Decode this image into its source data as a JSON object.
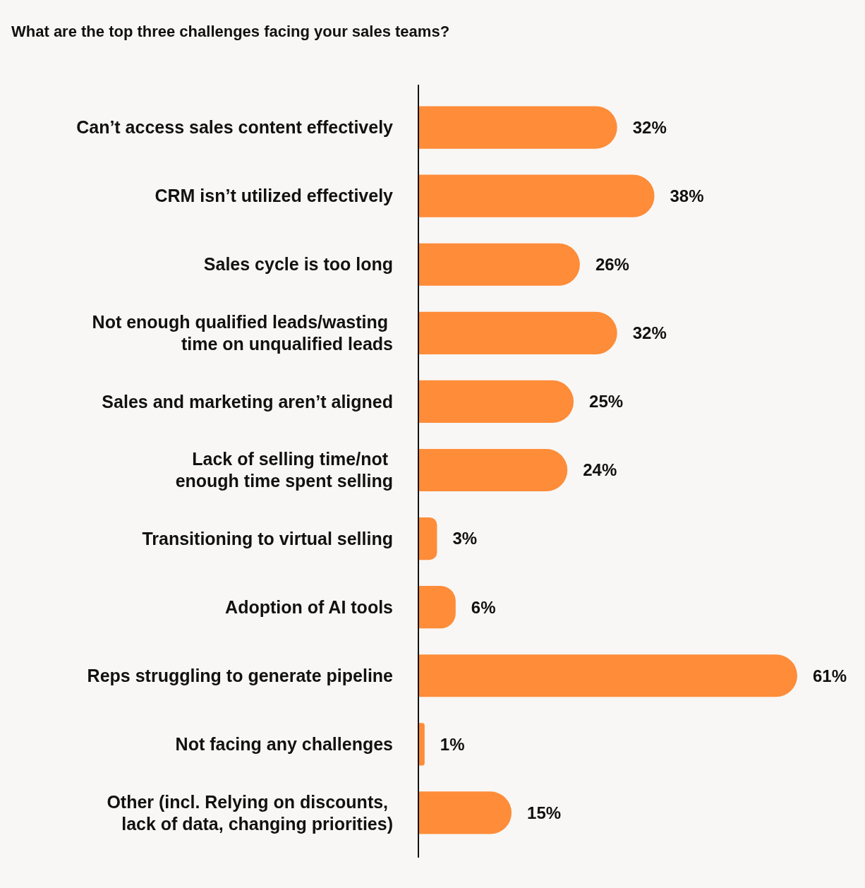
{
  "chart_data": {
    "type": "bar",
    "orientation": "horizontal",
    "title": "What are the top three challenges facing your sales teams?",
    "categories": [
      "Can’t access sales content effectively",
      "CRM isn’t utilized effectively",
      "Sales cycle is too long",
      "Not enough qualified leads/wasting\ntime on unqualified leads",
      "Sales and marketing aren’t aligned",
      "Lack of selling time/not\nenough time spent selling",
      "Transitioning to virtual selling",
      "Adoption of AI tools",
      "Reps struggling to generate pipeline",
      "Not facing any challenges",
      "Other (incl. Relying on discounts,\nlack of data, changing priorities)"
    ],
    "values": [
      32,
      38,
      26,
      32,
      25,
      24,
      3,
      6,
      61,
      1,
      15
    ],
    "value_labels": [
      "32%",
      "38%",
      "26%",
      "32%",
      "25%",
      "24%",
      "3%",
      "6%",
      "61%",
      "1%",
      "15%"
    ],
    "color": "#ff8c38"
  }
}
